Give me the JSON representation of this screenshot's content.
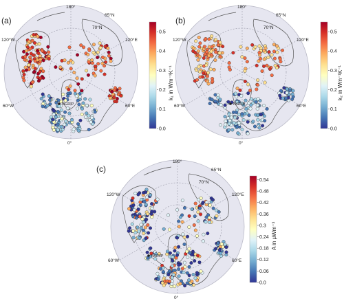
{
  "panels": [
    {
      "id": "a",
      "letter": "(a)",
      "colorbar_label": "k₁ in Wm⁻¹K⁻¹",
      "colorbar_range": [
        0.0,
        0.55
      ],
      "colorbar_ticks": [
        "0.5",
        "0.4",
        "0.3",
        "0.2",
        "0.1",
        "0.0"
      ],
      "value_bias": "high",
      "seed": 11
    },
    {
      "id": "b",
      "letter": "(b)",
      "colorbar_label": "k₂ in Wm⁻¹K⁻¹",
      "colorbar_range": [
        0.0,
        0.55
      ],
      "colorbar_ticks": [
        "0.5",
        "0.4",
        "0.3",
        "0.2",
        "0.1",
        "0.0"
      ],
      "value_bias": "mid",
      "seed": 23
    },
    {
      "id": "c",
      "letter": "(c)",
      "colorbar_label": "A in μWm⁻³",
      "colorbar_range": [
        0.0,
        0.56
      ],
      "colorbar_ticks": [
        "0.54",
        "0.48",
        "0.42",
        "0.36",
        "0.3",
        "0.24",
        "0.18",
        "0.12",
        "0.06",
        "0.0"
      ],
      "value_bias": "low",
      "seed": 37
    }
  ],
  "map_labels": {
    "lon_180": "180°",
    "lon_0": "0°",
    "lon_120e": "120°E",
    "lon_60e": "60°E",
    "lon_120w": "120°W",
    "lon_60w": "60°W",
    "lat_65n": "65°N",
    "lat_70n": "70°N",
    "site": "NGRIP"
  },
  "colors": {
    "map_bg": "#e6e6f0",
    "grid": "#9a9aa8",
    "land": "#555555",
    "colorscale": [
      "#313695",
      "#4575b4",
      "#74add1",
      "#abd9e9",
      "#e0f3f8",
      "#ffffbf",
      "#fee090",
      "#fdae61",
      "#f46d43",
      "#d73027",
      "#a50026"
    ]
  }
}
